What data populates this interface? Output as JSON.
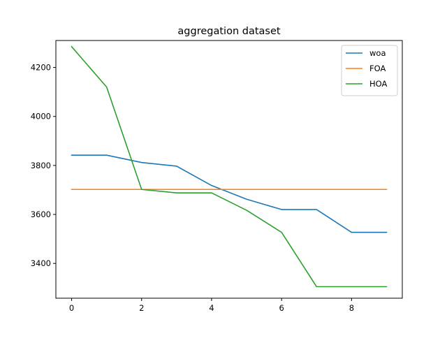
{
  "chart_data": {
    "type": "line",
    "title": "aggregation dataset",
    "xlabel": "",
    "ylabel": "",
    "x": [
      0,
      1,
      2,
      3,
      4,
      5,
      6,
      7,
      8,
      9
    ],
    "xlim": [
      -0.45,
      9.45
    ],
    "ylim": [
      3258,
      4310
    ],
    "xticks": [
      0,
      2,
      4,
      6,
      8
    ],
    "yticks": [
      3400,
      3600,
      3800,
      4000,
      4200
    ],
    "grid": false,
    "legend_position": "top-right",
    "series": [
      {
        "name": "woa",
        "color": "#1f77b4",
        "values": [
          3842,
          3842,
          3812,
          3797,
          3718,
          3662,
          3620,
          3620,
          3527,
          3527
        ]
      },
      {
        "name": "FOA",
        "color": "#ff7f0e",
        "values": [
          3702,
          3702,
          3702,
          3702,
          3702,
          3702,
          3702,
          3702,
          3702,
          3702
        ]
      },
      {
        "name": "HOA",
        "color": "#2ca02c",
        "values": [
          4285,
          4120,
          3702,
          3688,
          3688,
          3617,
          3527,
          3305,
          3305,
          3305
        ]
      }
    ]
  }
}
